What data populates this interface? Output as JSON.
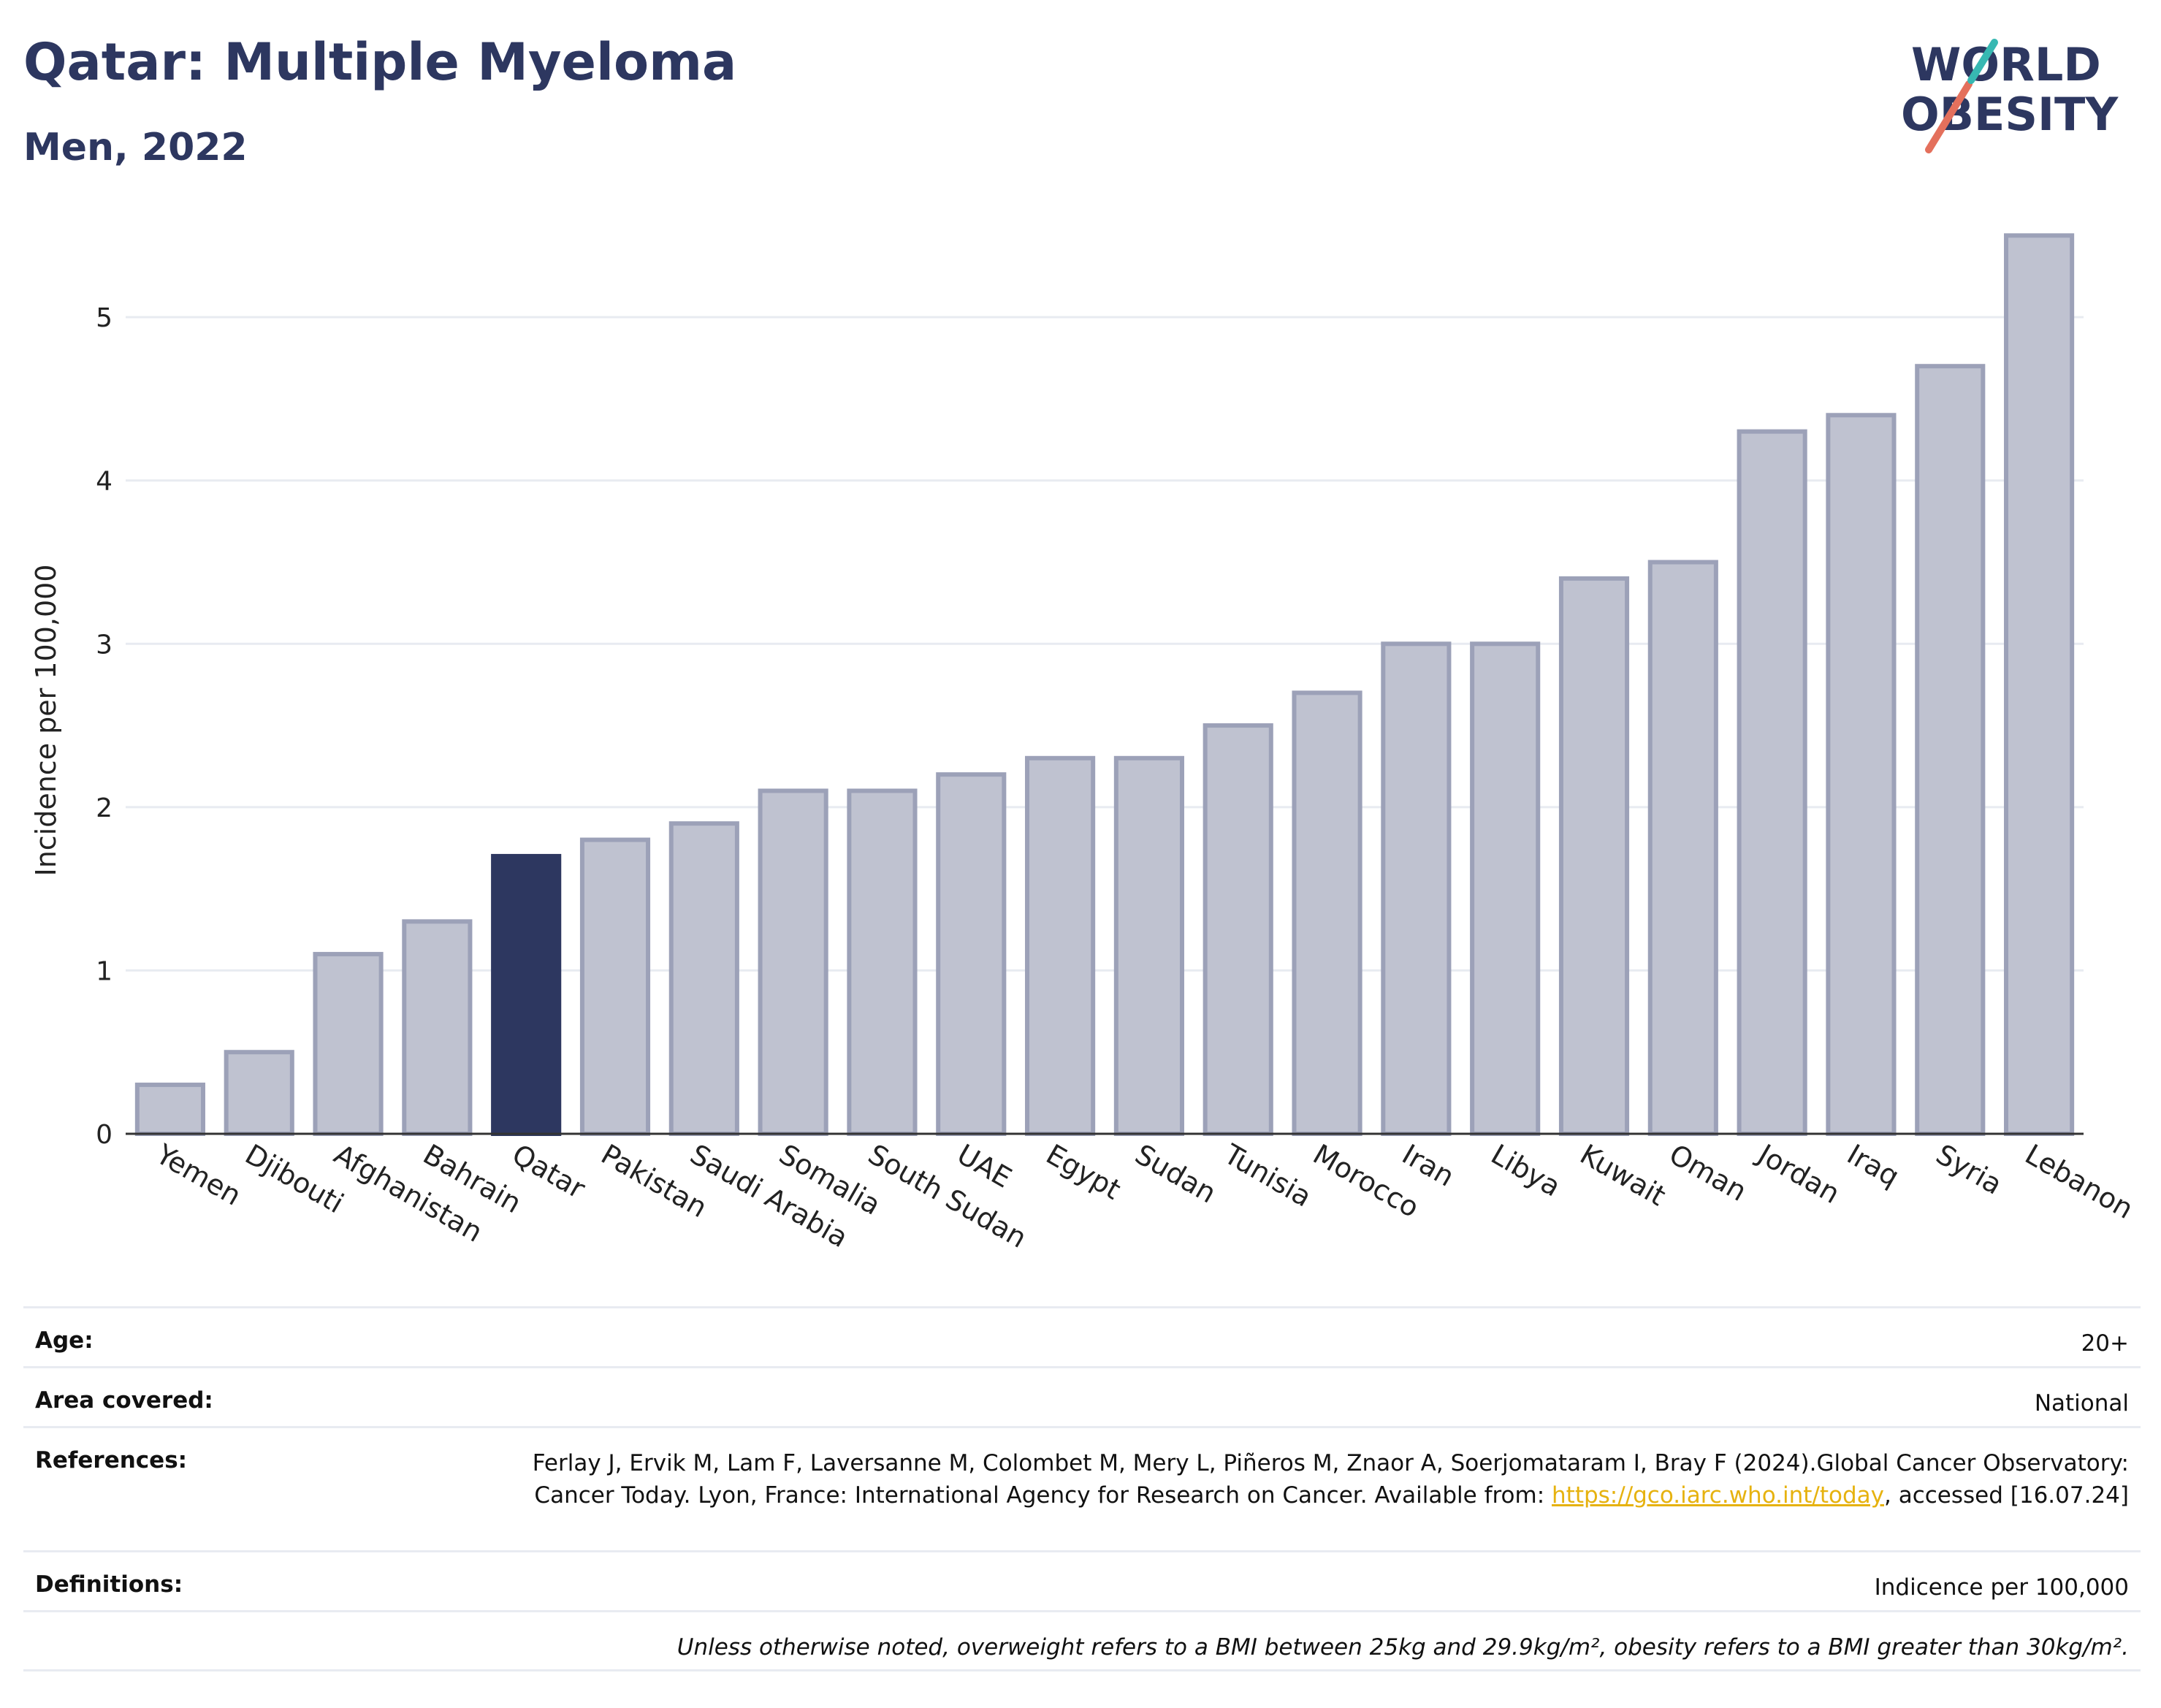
{
  "header": {
    "title": "Qatar: Multiple Myeloma",
    "subtitle": "Men, 2022"
  },
  "logo": {
    "line1": "WORLD",
    "line2": "OBESITY",
    "colors": {
      "text": "#2d3760",
      "slash_red": "#e4705c",
      "slash_teal": "#37b8b2"
    }
  },
  "chart_data": {
    "type": "bar",
    "categories": [
      "Yemen",
      "Djibouti",
      "Afghanistan",
      "Bahrain",
      "Qatar",
      "Pakistan",
      "Saudi Arabia",
      "Somalia",
      "South Sudan",
      "UAE",
      "Egypt",
      "Sudan",
      "Tunisia",
      "Morocco",
      "Iran",
      "Libya",
      "Kuwait",
      "Oman",
      "Jordan",
      "Iraq",
      "Syria",
      "Lebanon"
    ],
    "values": [
      0.3,
      0.5,
      1.1,
      1.3,
      1.7,
      1.8,
      1.9,
      2.1,
      2.1,
      2.2,
      2.3,
      2.3,
      2.5,
      2.7,
      3.0,
      3.0,
      3.4,
      3.5,
      4.3,
      4.4,
      4.7,
      5.5
    ],
    "highlight": "Qatar",
    "ylabel": "Incidence per 100,000",
    "ylim": [
      0,
      5.6
    ],
    "yticks": [
      0,
      1,
      2,
      3,
      4,
      5
    ],
    "grid": true,
    "colors": {
      "bar": "#bfc2d0",
      "bar_edge": "#9ca1b8",
      "highlight": "#2d3760",
      "grid": "#e8ebf1",
      "axis": "#333333"
    }
  },
  "meta": {
    "age_label": "Age:",
    "age_value": "20+",
    "area_label": "Area covered:",
    "area_value": "National",
    "references_label": "References:",
    "references_text": "Ferlay J, Ervik M, Lam F, Laversanne M, Colombet M, Mery L, Piñeros M, Znaor A, Soerjomataram I, Bray F (2024).Global Cancer Observatory: Cancer Today. Lyon, France: International Agency for Research on Cancer. Available from: ",
    "references_link": "https://gco.iarc.who.int/today",
    "references_tail": ", accessed [16.07.24]",
    "definitions_label": "Definitions:",
    "definitions_value": "Indicence per 100,000",
    "note": "Unless otherwise noted, overweight refers to a BMI between 25kg and 29.9kg/m², obesity refers to a BMI greater than 30kg/m²."
  }
}
